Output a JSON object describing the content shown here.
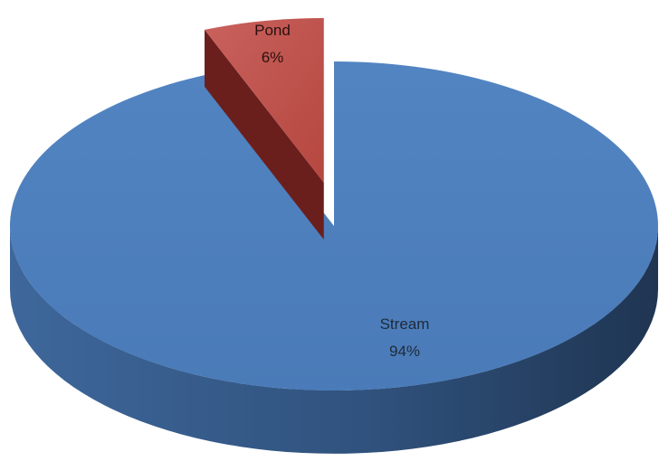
{
  "chart_data": {
    "type": "pie",
    "style": "3d-exploded",
    "start_angle_deg": 0,
    "exploded_slice": "Pond",
    "slices": [
      {
        "name": "Stream",
        "value": 94,
        "label": "Stream",
        "pct_text": "94%",
        "color": "#4F81BD",
        "side_color": "#3B6394",
        "label_color": "#1F2A3A"
      },
      {
        "name": "Pond",
        "value": 6,
        "label": "Pond",
        "pct_text": "6%",
        "color": "#C0504D",
        "side_color": "#6B1F1D",
        "label_color": "#2A1010"
      }
    ]
  }
}
